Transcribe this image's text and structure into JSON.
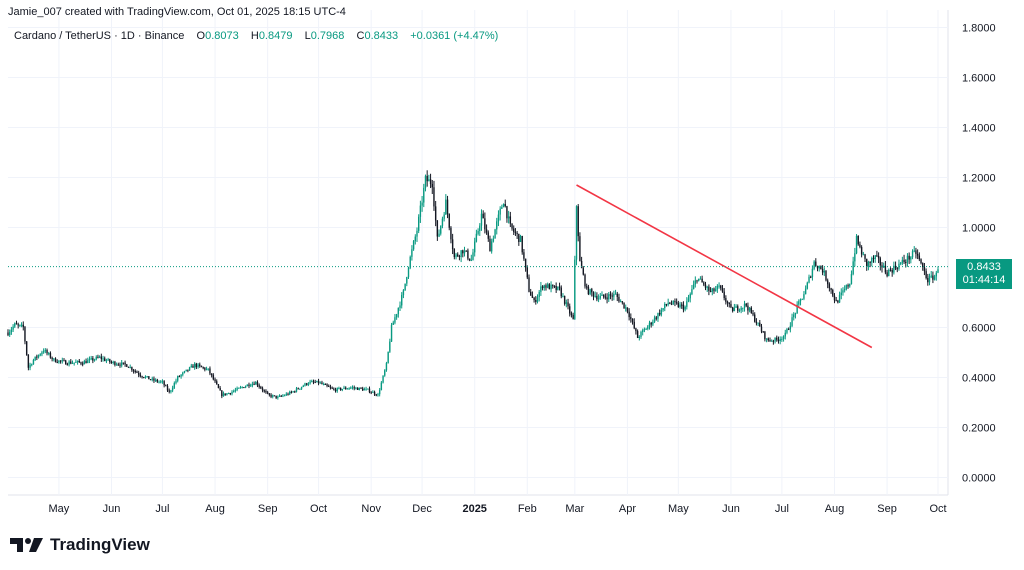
{
  "header": {
    "created_by": "Jamie_007 created with TradingView.com, Oct 01, 2025 18:15 UTC-4"
  },
  "legend": {
    "symbol": "Cardano / TetherUS · 1D · Binance",
    "o_label": "O",
    "o_value": "0.8073",
    "h_label": "H",
    "h_value": "0.8479",
    "l_label": "L",
    "l_value": "0.7968",
    "c_label": "C",
    "c_value": "0.8433",
    "change": "+0.0361 (+4.47%)"
  },
  "price_badge": {
    "price": "0.8433",
    "countdown": "01:44:14"
  },
  "footer": {
    "brand": "TradingView"
  },
  "colors": {
    "up": "#089981",
    "down": "#131722",
    "trendline": "#f23645",
    "grid": "#f0f3fa",
    "price_line": "#089981"
  },
  "chart_data": {
    "type": "candlestick",
    "title": "Cardano / TetherUS · 1D · Binance",
    "x_tick_labels": [
      "May",
      "Jun",
      "Jul",
      "Aug",
      "Sep",
      "Oct",
      "Nov",
      "Dec",
      "2025",
      "Feb",
      "Mar",
      "Apr",
      "May",
      "Jun",
      "Jul",
      "Aug",
      "Sep",
      "Oct"
    ],
    "y_tick_labels": [
      "1.8000",
      "1.6000",
      "1.4000",
      "1.2000",
      "1.0000",
      "0.6000",
      "0.4000",
      "0.2000",
      "0.0000"
    ],
    "y_tick_values": [
      1.8,
      1.6,
      1.4,
      1.2,
      1.0,
      0.6,
      0.4,
      0.2,
      0.0
    ],
    "ylim": [
      -0.07,
      1.83
    ],
    "date_range": [
      "2024-04-01",
      "2025-10-01"
    ],
    "grid": true,
    "last_price": 0.8433,
    "trendline": {
      "start": [
        "2025-03-02",
        1.17
      ],
      "end": [
        "2025-08-23",
        0.52
      ],
      "color": "#f23645"
    },
    "close_series": [
      [
        "2024-04-01",
        0.58
      ],
      [
        "2024-04-05",
        0.61
      ],
      [
        "2024-04-10",
        0.6
      ],
      [
        "2024-04-13",
        0.44
      ],
      [
        "2024-04-16",
        0.47
      ],
      [
        "2024-04-22",
        0.51
      ],
      [
        "2024-04-28",
        0.47
      ],
      [
        "2024-05-05",
        0.46
      ],
      [
        "2024-05-15",
        0.46
      ],
      [
        "2024-05-25",
        0.48
      ],
      [
        "2024-06-01",
        0.46
      ],
      [
        "2024-06-10",
        0.45
      ],
      [
        "2024-06-18",
        0.41
      ],
      [
        "2024-06-25",
        0.39
      ],
      [
        "2024-07-01",
        0.38
      ],
      [
        "2024-07-05",
        0.34
      ],
      [
        "2024-07-10",
        0.4
      ],
      [
        "2024-07-20",
        0.45
      ],
      [
        "2024-07-28",
        0.43
      ],
      [
        "2024-08-05",
        0.33
      ],
      [
        "2024-08-10",
        0.34
      ],
      [
        "2024-08-20",
        0.37
      ],
      [
        "2024-08-25",
        0.38
      ],
      [
        "2024-09-01",
        0.33
      ],
      [
        "2024-09-07",
        0.32
      ],
      [
        "2024-09-15",
        0.34
      ],
      [
        "2024-09-25",
        0.38
      ],
      [
        "2024-10-01",
        0.38
      ],
      [
        "2024-10-10",
        0.35
      ],
      [
        "2024-10-20",
        0.36
      ],
      [
        "2024-10-30",
        0.35
      ],
      [
        "2024-11-05",
        0.33
      ],
      [
        "2024-11-10",
        0.45
      ],
      [
        "2024-11-13",
        0.6
      ],
      [
        "2024-11-20",
        0.74
      ],
      [
        "2024-11-23",
        0.85
      ],
      [
        "2024-11-28",
        0.99
      ],
      [
        "2024-12-03",
        1.19
      ],
      [
        "2024-12-07",
        1.18
      ],
      [
        "2024-12-10",
        0.95
      ],
      [
        "2024-12-15",
        1.1
      ],
      [
        "2024-12-20",
        0.88
      ],
      [
        "2024-12-25",
        0.91
      ],
      [
        "2024-12-30",
        0.87
      ],
      [
        "2025-01-05",
        1.05
      ],
      [
        "2025-01-10",
        0.92
      ],
      [
        "2025-01-18",
        1.11
      ],
      [
        "2025-01-22",
        1.0
      ],
      [
        "2025-01-28",
        0.95
      ],
      [
        "2025-02-02",
        0.75
      ],
      [
        "2025-02-05",
        0.7
      ],
      [
        "2025-02-10",
        0.77
      ],
      [
        "2025-02-20",
        0.75
      ],
      [
        "2025-02-28",
        0.63
      ],
      [
        "2025-03-02",
        1.09
      ],
      [
        "2025-03-04",
        0.86
      ],
      [
        "2025-03-08",
        0.75
      ],
      [
        "2025-03-15",
        0.72
      ],
      [
        "2025-03-25",
        0.73
      ],
      [
        "2025-04-01",
        0.67
      ],
      [
        "2025-04-07",
        0.56
      ],
      [
        "2025-04-15",
        0.62
      ],
      [
        "2025-04-25",
        0.7
      ],
      [
        "2025-05-05",
        0.68
      ],
      [
        "2025-05-12",
        0.8
      ],
      [
        "2025-05-20",
        0.74
      ],
      [
        "2025-05-25",
        0.76
      ],
      [
        "2025-06-01",
        0.67
      ],
      [
        "2025-06-10",
        0.69
      ],
      [
        "2025-06-18",
        0.6
      ],
      [
        "2025-06-22",
        0.55
      ],
      [
        "2025-06-28",
        0.55
      ],
      [
        "2025-07-03",
        0.57
      ],
      [
        "2025-07-10",
        0.68
      ],
      [
        "2025-07-15",
        0.75
      ],
      [
        "2025-07-20",
        0.86
      ],
      [
        "2025-07-25",
        0.83
      ],
      [
        "2025-08-02",
        0.7
      ],
      [
        "2025-08-10",
        0.78
      ],
      [
        "2025-08-14",
        0.95
      ],
      [
        "2025-08-20",
        0.85
      ],
      [
        "2025-08-25",
        0.88
      ],
      [
        "2025-09-01",
        0.82
      ],
      [
        "2025-09-10",
        0.86
      ],
      [
        "2025-09-18",
        0.9
      ],
      [
        "2025-09-25",
        0.79
      ],
      [
        "2025-09-30",
        0.81
      ],
      [
        "2025-10-01",
        0.8433
      ]
    ]
  }
}
